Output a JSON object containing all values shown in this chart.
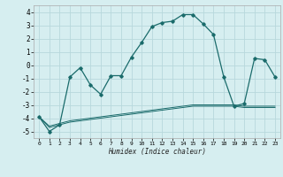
{
  "xlabel": "Humidex (Indice chaleur)",
  "bg_color": "#d6eef0",
  "grid_color": "#b8d8dc",
  "line_color": "#1a6b6b",
  "xlim": [
    -0.5,
    23.5
  ],
  "ylim": [
    -5.5,
    4.5
  ],
  "yticks": [
    -5,
    -4,
    -3,
    -2,
    -1,
    0,
    1,
    2,
    3,
    4
  ],
  "xticks": [
    0,
    1,
    2,
    3,
    4,
    5,
    6,
    7,
    8,
    9,
    10,
    11,
    12,
    13,
    14,
    15,
    16,
    17,
    18,
    19,
    20,
    21,
    22,
    23
  ],
  "series1_x": [
    0,
    1,
    2,
    3,
    4,
    5,
    6,
    7,
    8,
    9,
    10,
    11,
    12,
    13,
    14,
    15,
    16,
    17,
    18,
    19,
    20,
    21,
    22,
    23
  ],
  "series1_y": [
    -3.9,
    -5.0,
    -4.5,
    -0.9,
    -0.2,
    -1.5,
    -2.2,
    -0.8,
    -0.8,
    0.6,
    1.7,
    2.9,
    3.2,
    3.3,
    3.8,
    3.8,
    3.1,
    2.3,
    -0.9,
    -3.1,
    -2.9,
    0.5,
    0.4,
    -0.9
  ],
  "series2_x": [
    0,
    1,
    2,
    3,
    4,
    5,
    6,
    7,
    8,
    9,
    10,
    11,
    12,
    13,
    14,
    15,
    16,
    17,
    18,
    19,
    20,
    21,
    22,
    23
  ],
  "series2_y": [
    -3.9,
    -4.6,
    -4.4,
    -4.2,
    -4.1,
    -4.0,
    -3.9,
    -3.8,
    -3.7,
    -3.6,
    -3.5,
    -3.4,
    -3.3,
    -3.2,
    -3.1,
    -3.0,
    -3.0,
    -3.0,
    -3.0,
    -3.0,
    -3.1,
    -3.1,
    -3.1,
    -3.1
  ],
  "series3_x": [
    0,
    1,
    2,
    3,
    4,
    5,
    6,
    7,
    8,
    9,
    10,
    11,
    12,
    13,
    14,
    15,
    16,
    17,
    18,
    19,
    20,
    21,
    22,
    23
  ],
  "series3_y": [
    -3.9,
    -4.7,
    -4.5,
    -4.3,
    -4.2,
    -4.1,
    -4.0,
    -3.9,
    -3.8,
    -3.7,
    -3.6,
    -3.5,
    -3.4,
    -3.3,
    -3.2,
    -3.1,
    -3.1,
    -3.1,
    -3.1,
    -3.1,
    -3.2,
    -3.2,
    -3.2,
    -3.2
  ]
}
